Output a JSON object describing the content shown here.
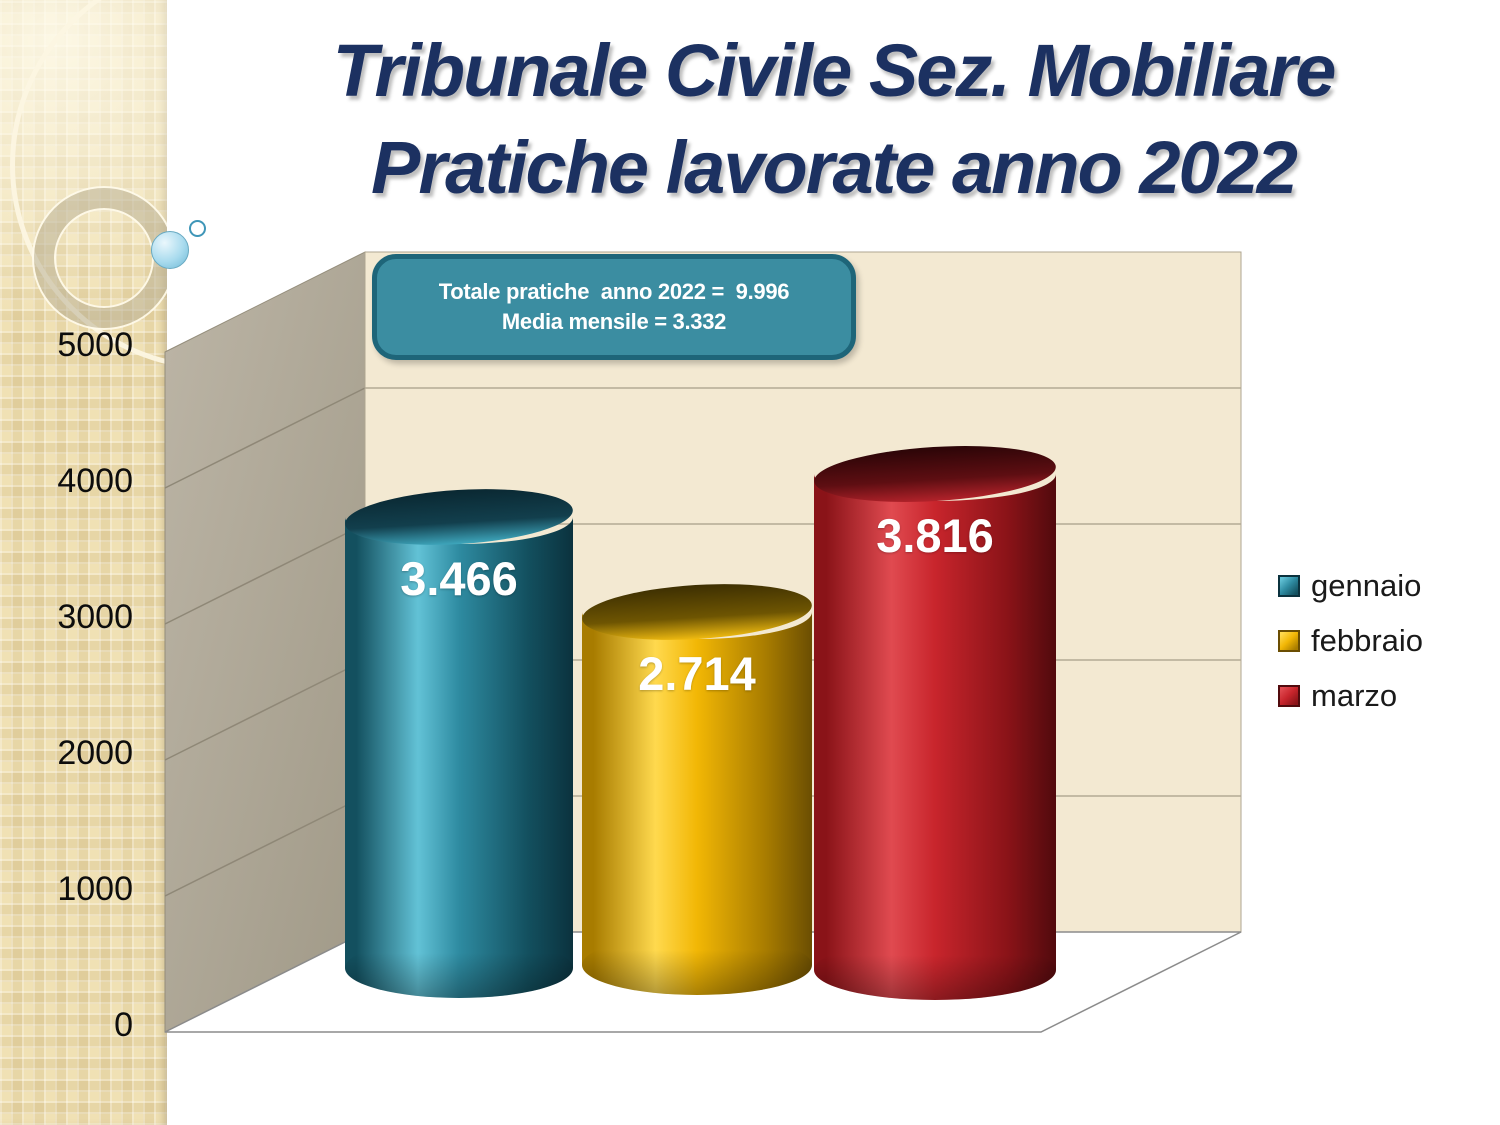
{
  "slide": {
    "title": {
      "line1": "Tribunale Civile Sez. Mobiliare",
      "line2": "Pratiche lavorate anno 2022"
    },
    "callout": {
      "line1": "Totale pratiche  anno 2022 =  9.996",
      "line2": "Media mensile = 3.332"
    }
  },
  "chart_data": {
    "type": "bar",
    "subtype": "3d-cylinder",
    "title": "",
    "xlabel": "",
    "ylabel": "",
    "categories": [
      "gennaio",
      "febbraio",
      "marzo"
    ],
    "values": [
      3466,
      2714,
      3816
    ],
    "value_labels": [
      "3.466",
      "2.714",
      "3.816"
    ],
    "series": [
      {
        "name": "gennaio",
        "value": 3466,
        "label": "3.466",
        "color": "#2E8BA1",
        "light": "#62C2D6",
        "dark": "#13505F",
        "darker": "#0B323E",
        "top_dark": "#0A2832",
        "top_mid": "#123F4D",
        "rim": "#3EA6BC"
      },
      {
        "name": "febbraio",
        "value": 2714,
        "label": "2.714",
        "color": "#F2B705",
        "light": "#FFD94E",
        "dark": "#A87C00",
        "darker": "#6B4E02",
        "top_dark": "#3D2F02",
        "top_mid": "#6E5502",
        "rim": "#EFBA10"
      },
      {
        "name": "marzo",
        "value": 3816,
        "label": "3.816",
        "color": "#C8252C",
        "light": "#E04A50",
        "dark": "#8A1318",
        "darker": "#510A0D",
        "top_dark": "#2B0507",
        "top_mid": "#5E0E12",
        "rim": "#B2222A"
      }
    ],
    "y_ticks": [
      "5000",
      "4000",
      "3000",
      "2000",
      "1000",
      "0"
    ],
    "ylim": [
      0,
      5000
    ],
    "grid": true,
    "legend_position": "right"
  },
  "colors": {
    "title_text": "#1C3161",
    "callout_bg": "#3B8DA1",
    "callout_border": "#1E6579",
    "back_wall": "#F3E9D2",
    "side_wall": "#ADA695",
    "floor": "#FFFFFF",
    "sidebar": "#F0E1B4"
  }
}
